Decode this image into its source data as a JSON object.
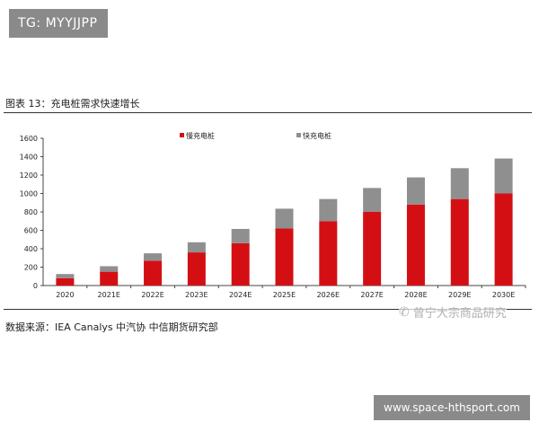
{
  "header": {
    "tag": "TG: MYYJJPP"
  },
  "figure": {
    "title": "图表 13：充电桩需求快速增长",
    "source": "数据来源：IEA Canalys 中汽协 中信期货研究部"
  },
  "watermark": {
    "account": "曾宁大宗商品研究",
    "icon": "wechat-icon"
  },
  "banner": {
    "site": "www.space-hthsport.com"
  },
  "colors": {
    "slow": "#d40f14",
    "fast": "#8f8f8f"
  },
  "chart_data": {
    "type": "bar",
    "stacked": true,
    "categories": [
      "2020",
      "2021E",
      "2022E",
      "2023E",
      "2024E",
      "2025E",
      "2026E",
      "2027E",
      "2028E",
      "2029E",
      "2030E"
    ],
    "series": [
      {
        "name": "慢充电桩",
        "values": [
          80,
          150,
          270,
          360,
          460,
          620,
          700,
          800,
          880,
          940,
          1000
        ]
      },
      {
        "name": "快充电桩",
        "values": [
          45,
          60,
          80,
          110,
          155,
          215,
          240,
          260,
          295,
          335,
          380
        ]
      }
    ],
    "yticks": [
      0,
      200,
      400,
      600,
      800,
      1000,
      1200,
      1400,
      1600
    ],
    "ylim": [
      0,
      1600
    ],
    "legend_position": "top-center",
    "grid": false
  }
}
